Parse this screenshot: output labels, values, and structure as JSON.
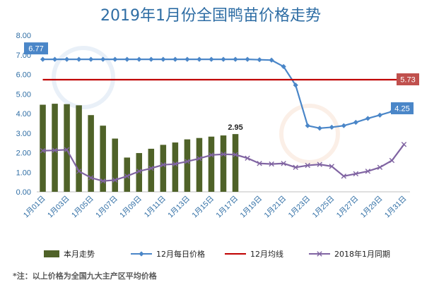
{
  "chart_data": {
    "type": "bar+line",
    "title": "2019年1月份全国鸭苗价格走势",
    "x": [
      "1月01日",
      "1月02日",
      "1月03日",
      "1月04日",
      "1月05日",
      "1月06日",
      "1月07日",
      "1月08日",
      "1月09日",
      "1月10日",
      "1月11日",
      "1月12日",
      "1月13日",
      "1月14日",
      "1月15日",
      "1月16日",
      "1月17日",
      "1月18日",
      "1月19日",
      "1月20日",
      "1月21日",
      "1月22日",
      "1月23日",
      "1月24日",
      "1月25日",
      "1月26日",
      "1月27日",
      "1月28日",
      "1月29日",
      "1月30日",
      "1月31日"
    ],
    "x_tick_labels": [
      "1月01日",
      "1月03日",
      "1月05日",
      "1月07日",
      "1月09日",
      "1月11日",
      "1月13日",
      "1月15日",
      "1月17日",
      "1月19日",
      "1月21日",
      "1月23日",
      "1月25日",
      "1月27日",
      "1月29日",
      "1月31日"
    ],
    "ylim": [
      0,
      8
    ],
    "y_ticks": [
      "0.00",
      "1.00",
      "2.00",
      "3.00",
      "4.00",
      "5.00",
      "6.00",
      "7.00",
      "8.00"
    ],
    "grid": false,
    "legend_position": "bottom",
    "series": [
      {
        "name": "本月走势",
        "kind": "bar",
        "color": "#4f6228",
        "values": [
          4.45,
          4.5,
          4.48,
          4.42,
          3.92,
          3.38,
          2.72,
          1.75,
          1.98,
          2.2,
          2.4,
          2.52,
          2.68,
          2.75,
          2.82,
          2.88,
          2.95,
          null,
          null,
          null,
          null,
          null,
          null,
          null,
          null,
          null,
          null,
          null,
          null,
          null,
          null
        ]
      },
      {
        "name": "12月每日价格",
        "kind": "line",
        "color": "#4a86c8",
        "marker": "diamond",
        "values": [
          6.77,
          6.77,
          6.77,
          6.77,
          6.77,
          6.77,
          6.77,
          6.77,
          6.77,
          6.77,
          6.77,
          6.77,
          6.77,
          6.77,
          6.77,
          6.77,
          6.77,
          6.77,
          6.75,
          6.73,
          6.4,
          5.45,
          3.38,
          3.25,
          3.3,
          3.38,
          3.55,
          3.75,
          3.92,
          4.1,
          4.25
        ]
      },
      {
        "name": "12月均线",
        "kind": "line",
        "color": "#c00000",
        "values": [
          5.73,
          5.73,
          5.73,
          5.73,
          5.73,
          5.73,
          5.73,
          5.73,
          5.73,
          5.73,
          5.73,
          5.73,
          5.73,
          5.73,
          5.73,
          5.73,
          5.73,
          5.73,
          5.73,
          5.73,
          5.73,
          5.73,
          5.73,
          5.73,
          5.73,
          5.73,
          5.73,
          5.73,
          5.73,
          5.73,
          5.73
        ]
      },
      {
        "name": "2018年1月同期",
        "kind": "line",
        "color": "#8064a2",
        "marker": "x",
        "values": [
          2.1,
          2.12,
          2.15,
          1.05,
          0.72,
          0.55,
          0.6,
          0.8,
          1.05,
          1.2,
          1.38,
          1.42,
          1.55,
          1.7,
          1.88,
          1.92,
          1.9,
          1.72,
          1.45,
          1.42,
          1.45,
          1.25,
          1.35,
          1.4,
          1.3,
          0.8,
          0.92,
          1.05,
          1.25,
          1.6,
          2.42
        ]
      }
    ],
    "annotations": [
      {
        "text": "6.77",
        "series": "12月每日价格",
        "style": "blue-box"
      },
      {
        "text": "5.73",
        "series": "12月均线",
        "style": "red-box"
      },
      {
        "text": "4.25",
        "series": "12月每日价格",
        "style": "blue-box"
      },
      {
        "text": "2.95",
        "series": "本月走势",
        "style": "plain"
      }
    ],
    "note": "*注：以上价格为全国九大主产区平均价格"
  }
}
